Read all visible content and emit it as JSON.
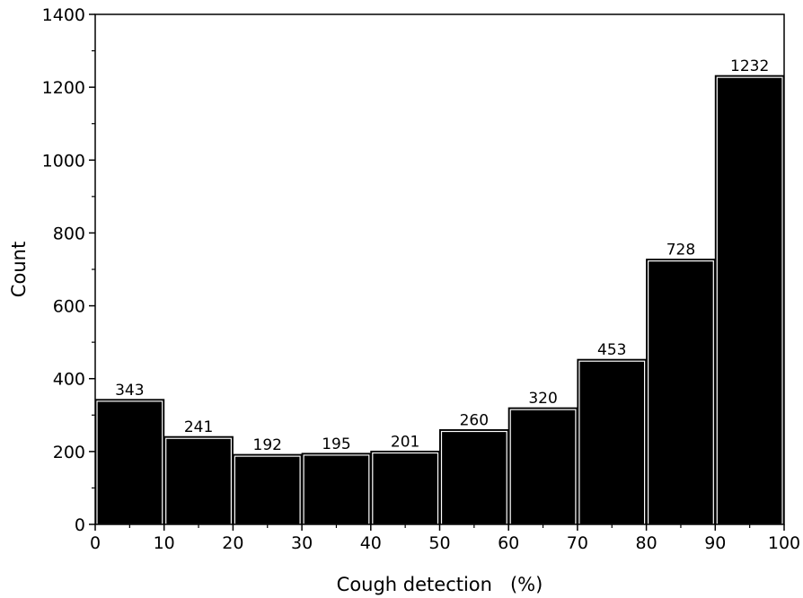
{
  "chart_data": {
    "type": "bar",
    "subtype": "histogram",
    "bin_edges": [
      0,
      10,
      20,
      30,
      40,
      50,
      60,
      70,
      80,
      90,
      100
    ],
    "values": [
      343,
      241,
      192,
      195,
      201,
      260,
      320,
      453,
      728,
      1232
    ],
    "data_labels": [
      "343",
      "241",
      "192",
      "195",
      "201",
      "260",
      "320",
      "453",
      "728",
      "1232"
    ],
    "title": "",
    "xlabel": "Cough detection   (%)",
    "ylabel": "Count",
    "xlim": [
      0,
      100
    ],
    "ylim": [
      0,
      1400
    ],
    "x_ticks": [
      0,
      10,
      20,
      30,
      40,
      50,
      60,
      70,
      80,
      90,
      100
    ],
    "y_ticks": [
      0,
      200,
      400,
      600,
      800,
      1000,
      1200,
      1400
    ],
    "grid": false,
    "legend": "none",
    "bar_color": "#000000",
    "bar_edge_color": "#ffffff"
  }
}
